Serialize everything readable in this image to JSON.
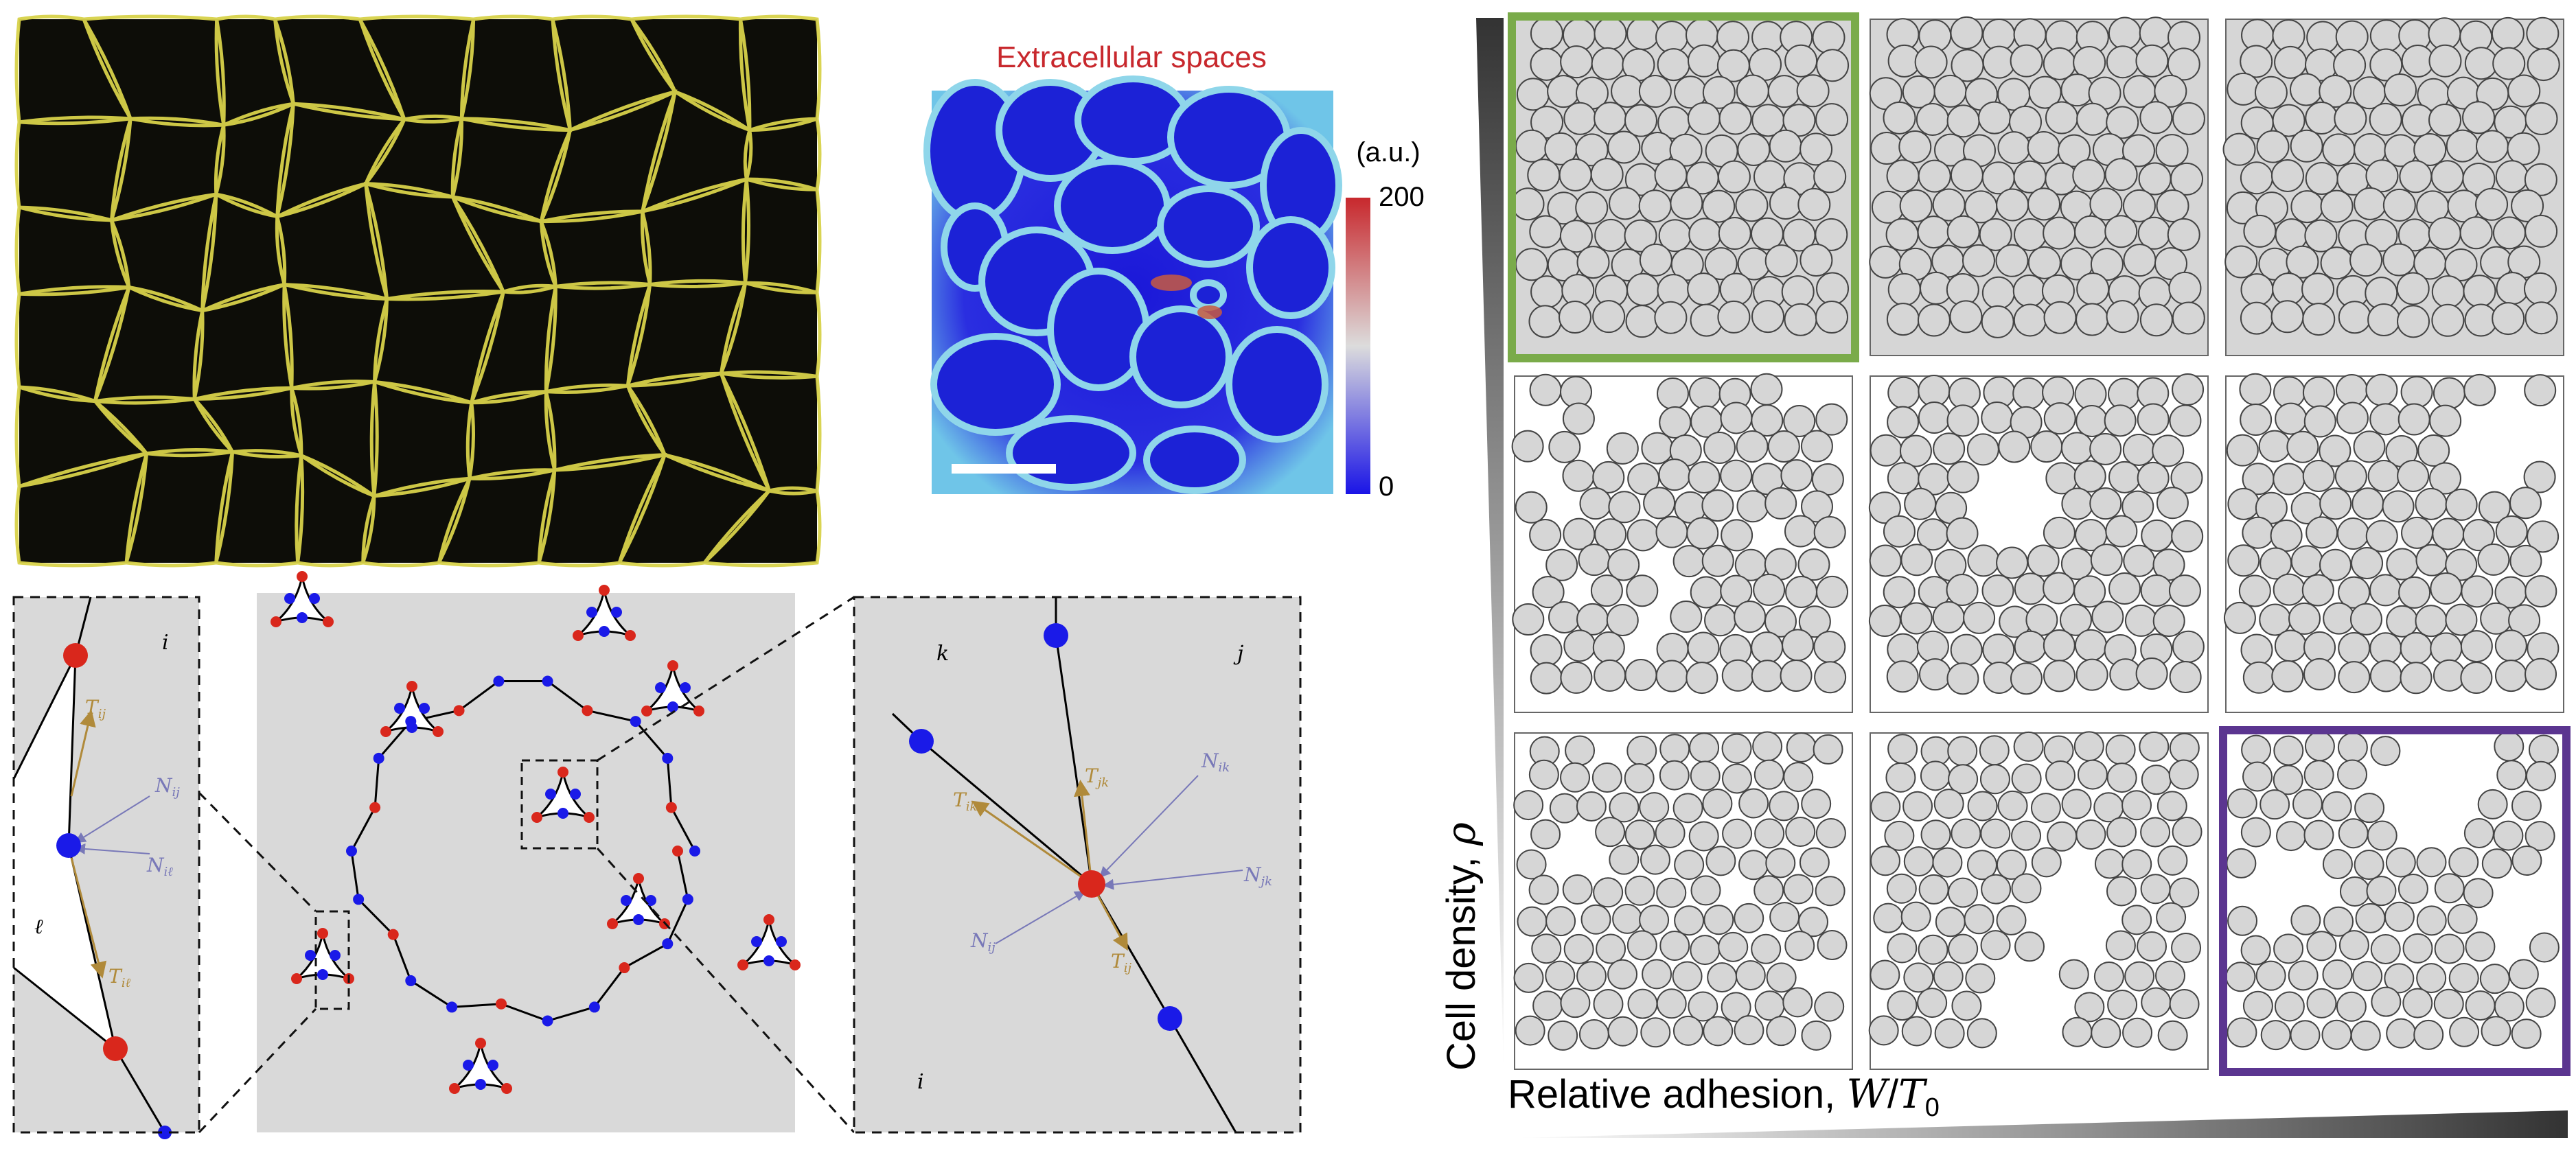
{
  "micrograph": {
    "title": "Extracellular spaces",
    "colorbar": {
      "unit": "(a.u.)",
      "max_label": "200",
      "min_label": "0",
      "top_color": "#c8282d",
      "mid_color": "#dcdcdc",
      "bottom_color": "#1a14e6"
    }
  },
  "zoom_left": {
    "cell_label_top": "i",
    "cell_label_bottom": "ℓ",
    "tension_top": "T_ij",
    "normal_1": "N_ij",
    "normal_2": "N_iℓ",
    "tension_bottom": "T_iℓ"
  },
  "zoom_right": {
    "cell_k": "k",
    "cell_j": "j",
    "cell_i": "i",
    "tension_ik": "T_ik",
    "tension_jk": "T_jk",
    "normal_ik": "N_ik",
    "normal_jk": "N_jk",
    "normal_ij": "N_ij",
    "tension_ij": "T_ij"
  },
  "phase_diagram": {
    "y_axis_label": "Cell density, ρ",
    "x_axis_label": "Relative adhesion, W/T₀",
    "highlight_green": "#7aab4a",
    "highlight_purple": "#5b3590",
    "cell_fill": "#d6d6d6",
    "rows": 3,
    "cols": 3
  },
  "colors": {
    "node_red": "#d9271c",
    "node_blue": "#1a1ae8",
    "tension_gold": "#b08a3a",
    "normal_violet": "#7878b8"
  }
}
